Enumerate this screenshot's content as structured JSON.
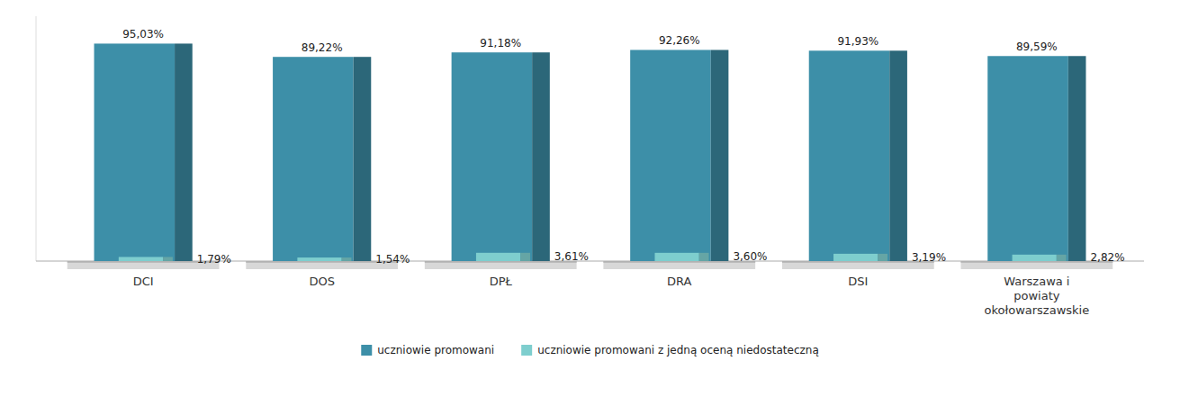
{
  "chart_data": {
    "type": "bar",
    "categories": [
      "DCI",
      "DOS",
      "DPŁ",
      "DRA",
      "DSI",
      "Warszawa i\npowiaty\nokołowarszawskie"
    ],
    "series": [
      {
        "name": "uczniowie promowani",
        "color": "#3d8fa8",
        "values": [
          95.03,
          89.22,
          91.18,
          92.26,
          91.93,
          89.59
        ],
        "value_labels": [
          "95,03%",
          "89,22%",
          "91,18%",
          "92,26%",
          "91,93%",
          "89,59%"
        ]
      },
      {
        "name": "uczniowie promowani z jedną oceną niedostateczną",
        "color": "#7ecece",
        "values": [
          1.79,
          1.54,
          3.61,
          3.6,
          3.19,
          2.82
        ],
        "value_labels": [
          "1,79%",
          "1,54%",
          "3,61%",
          "3,60%",
          "3,19%",
          "2,82%"
        ]
      }
    ],
    "ylim": [
      0,
      107
    ],
    "data_labels": true,
    "tick_labels": "x",
    "grid": false,
    "legend": "bottom"
  }
}
